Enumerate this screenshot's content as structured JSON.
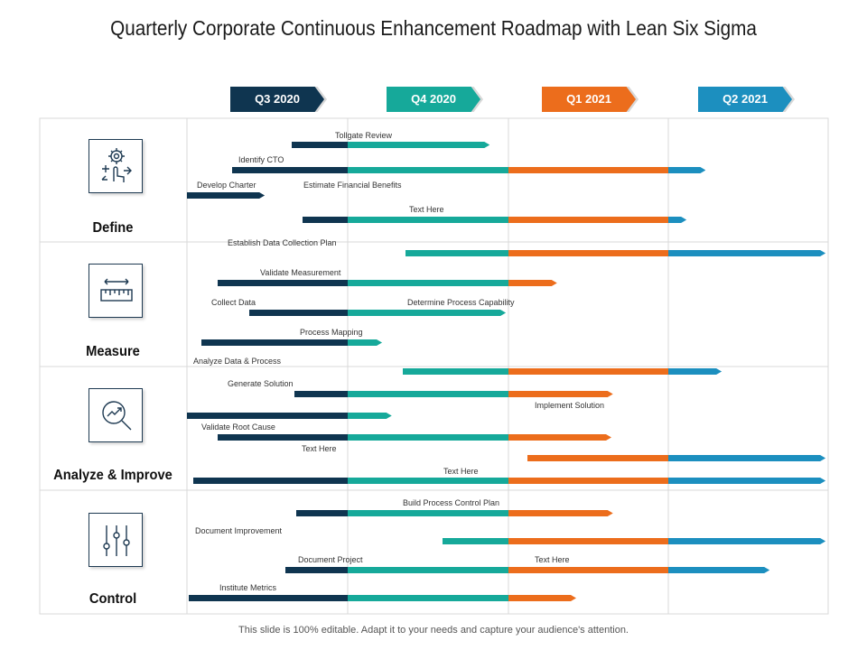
{
  "title": "Quarterly Corporate Continuous Enhancement Roadmap with Lean Six Sigma",
  "footer": "This slide is 100% editable. Adapt it to your needs and capture your audience's attention.",
  "colors": {
    "q3": "#0f3550",
    "q4": "#16a99a",
    "q1": "#ec6d1c",
    "q2": "#1c8fbf",
    "grid": "#d9d9d9"
  },
  "quarters": [
    {
      "label": "Q3 2020",
      "color": "#0f3550"
    },
    {
      "label": "Q4 2020",
      "color": "#16a99a"
    },
    {
      "label": "Q1 2021",
      "color": "#ec6d1c"
    },
    {
      "label": "Q2 2021",
      "color": "#1c8fbf"
    }
  ],
  "categories": [
    {
      "label": "Define",
      "icon": "gear-hand-icon"
    },
    {
      "label": "Measure",
      "icon": "ruler-icon"
    },
    {
      "label": "Analyze & Improve",
      "icon": "magnifier-chart-icon"
    },
    {
      "label": "Control",
      "icon": "sliders-icon"
    }
  ],
  "tasks": [
    {
      "label": "Tollgate Review",
      "start": 0.65,
      "end": 1.85
    },
    {
      "label": "Identify CTO",
      "start": 0.28,
      "end": 3.2
    },
    {
      "label": "Develop Charter",
      "start": 0.0,
      "end": 0.45
    },
    {
      "label": "Estimate Financial Benefits",
      "start": 0.72,
      "end": 3.08
    },
    {
      "label": "Text Here",
      "start": 1.36,
      "end": 3.95
    },
    {
      "label": "Establish Data Collection Plan",
      "start": 0.19,
      "end": 2.27
    },
    {
      "label": "Validate Measurement",
      "start": 0.39,
      "end": 1.95
    },
    {
      "label": "Collect Data",
      "start": 0.09,
      "end": 1.18
    },
    {
      "label": "Determine Process Capability",
      "start": 1.34,
      "end": 3.3
    },
    {
      "label": "Process Mapping",
      "start": 0.67,
      "end": 2.62
    },
    {
      "label": "Analyze Data & Process",
      "start": 0.0,
      "end": 1.24
    },
    {
      "label": "Generate Solution",
      "start": 0.19,
      "end": 2.61
    },
    {
      "label": "Implement Solution",
      "start": 2.12,
      "end": 3.95
    },
    {
      "label": "Validate Root Cause",
      "start": 0.04,
      "end": 3.95
    },
    {
      "label": "Text Here",
      "start": 0.68,
      "end": 2.62
    },
    {
      "label": "Text Here",
      "start": 1.59,
      "end": 3.95
    },
    {
      "label": "Build Process Control Plan",
      "start": 1.28,
      "end": 3.26
    },
    {
      "label": "Document Improvement",
      "start": 0.01,
      "end": 2.39
    },
    {
      "label": "Document Project",
      "start": 0.61,
      "end": 1.92
    },
    {
      "label": "Text Here",
      "start": 2.12,
      "end": 3.6
    },
    {
      "label": "Institute Metrics",
      "start": 0.14,
      "end": 1.66
    }
  ]
}
